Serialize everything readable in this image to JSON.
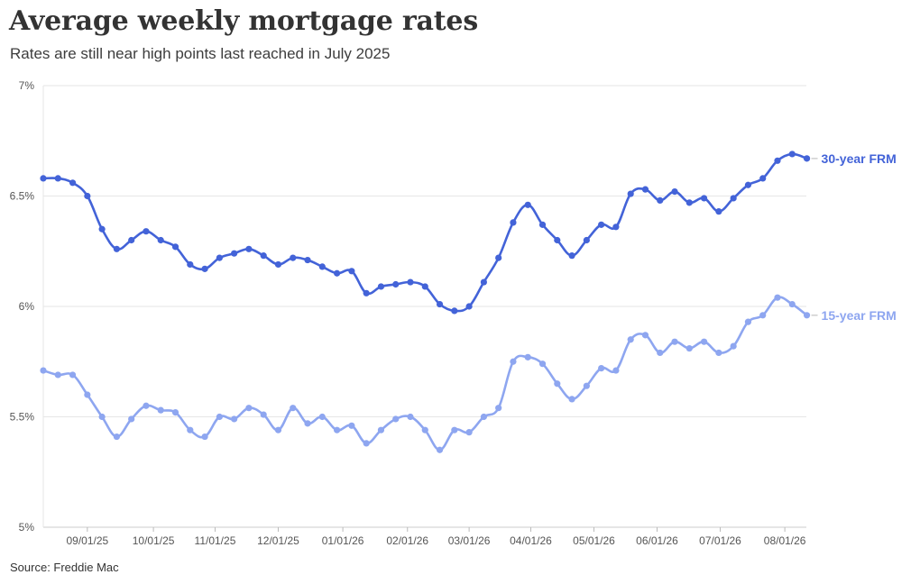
{
  "header": {
    "title": "Average weekly mortgage rates",
    "subtitle": "Rates are still near high points last reached in July 2025"
  },
  "footer": {
    "source": "Source: Freddie Mac"
  },
  "chart_data": {
    "type": "line",
    "title": "Average weekly mortgage rates",
    "subtitle": "Rates are still near high points last reached in July 2025",
    "xlabel": "",
    "ylabel": "",
    "ylim": [
      5,
      7
    ],
    "y_ticks": [
      5,
      5.5,
      6,
      6.5,
      7
    ],
    "y_tick_labels": [
      "5%",
      "5.5%",
      "6%",
      "6.5%",
      "7%"
    ],
    "x_tick_labels": [
      "09/01/25",
      "10/01/25",
      "11/01/25",
      "12/01/25",
      "01/01/26",
      "02/01/26",
      "03/01/26",
      "04/01/26",
      "05/01/26",
      "06/01/26",
      "07/01/26",
      "08/01/26"
    ],
    "x_tick_positions": [
      3.0,
      7.5,
      11.7,
      16.0,
      20.4,
      24.8,
      29.0,
      33.2,
      37.5,
      41.8,
      46.1,
      50.5
    ],
    "x_range": [
      0,
      52
    ],
    "grid": true,
    "legend": "direct labels at right end of lines",
    "series": [
      {
        "name": "30-year FRM",
        "color": "#4363d8",
        "values": [
          6.58,
          6.58,
          6.56,
          6.5,
          6.35,
          6.26,
          6.3,
          6.34,
          6.3,
          6.27,
          6.19,
          6.17,
          6.22,
          6.24,
          6.26,
          6.23,
          6.19,
          6.22,
          6.21,
          6.18,
          6.15,
          6.16,
          6.06,
          6.09,
          6.1,
          6.11,
          6.09,
          6.01,
          5.98,
          6.0,
          6.11,
          6.22,
          6.38,
          6.46,
          6.37,
          6.3,
          6.23,
          6.3,
          6.37,
          6.36,
          6.51,
          6.53,
          6.48,
          6.52,
          6.47,
          6.49,
          6.43,
          6.49,
          6.55,
          6.58,
          6.66,
          6.69,
          6.67
        ]
      },
      {
        "name": "15-year FRM",
        "color": "#8ea6f0",
        "values": [
          5.71,
          5.69,
          5.69,
          5.6,
          5.5,
          5.41,
          5.49,
          5.55,
          5.53,
          5.52,
          5.44,
          5.41,
          5.5,
          5.49,
          5.54,
          5.51,
          5.44,
          5.54,
          5.47,
          5.5,
          5.44,
          5.46,
          5.38,
          5.44,
          5.49,
          5.5,
          5.44,
          5.35,
          5.44,
          5.43,
          5.5,
          5.54,
          5.75,
          5.77,
          5.74,
          5.65,
          5.58,
          5.64,
          5.72,
          5.71,
          5.85,
          5.87,
          5.79,
          5.84,
          5.81,
          5.84,
          5.79,
          5.82,
          5.93,
          5.96,
          6.04,
          6.01,
          5.96
        ]
      }
    ]
  }
}
